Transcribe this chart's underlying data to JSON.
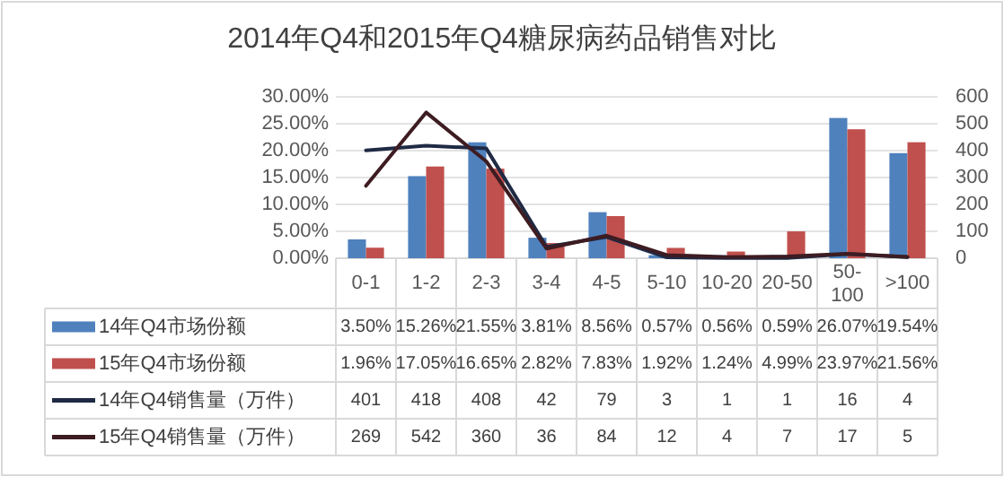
{
  "chart_data": {
    "type": "bar",
    "title": "2014年Q4和2015年Q4糖尿病药品销售对比",
    "categories": [
      "0-1",
      "1-2",
      "2-3",
      "3-4",
      "4-5",
      "5-10",
      "10-20",
      "20-50",
      "50-100",
      ">100"
    ],
    "ylim": [
      0,
      30
    ],
    "yticks": [
      {
        "value": 0,
        "label": "0.00%"
      },
      {
        "value": 5,
        "label": "5.00%"
      },
      {
        "value": 10,
        "label": "10.00%"
      },
      {
        "value": 15,
        "label": "15.00%"
      },
      {
        "value": 20,
        "label": "20.00%"
      },
      {
        "value": 25,
        "label": "25.00%"
      },
      {
        "value": 30,
        "label": "30.00%"
      }
    ],
    "y2lim": [
      0,
      600
    ],
    "y2ticks": [
      0,
      100,
      200,
      300,
      400,
      500,
      600
    ],
    "grid": "y",
    "legend": "bottom",
    "series": [
      {
        "name": "14年Q4市场份额",
        "color": "#4f81bd",
        "values": [
          3.5,
          15.26,
          21.55,
          3.81,
          8.56,
          0.57,
          0.56,
          0.59,
          26.07,
          19.54
        ],
        "value_labels": [
          "3.50%",
          "15.26%",
          "21.55%",
          "3.81%",
          "8.56%",
          "0.57%",
          "0.56%",
          "0.59%",
          "26.07%",
          "19.54%"
        ]
      },
      {
        "name": "15年Q4市场份额",
        "color": "#c0504d",
        "values": [
          1.96,
          17.05,
          16.65,
          2.82,
          7.83,
          1.92,
          1.24,
          4.99,
          23.97,
          21.56
        ],
        "value_labels": [
          "1.96%",
          "17.05%",
          "16.65%",
          "2.82%",
          "7.83%",
          "1.92%",
          "1.24%",
          "4.99%",
          "23.97%",
          "21.56%"
        ]
      },
      {
        "name": "14年Q4销售量（万件）",
        "type": "line",
        "axis": "y2",
        "color": "#1f2a44",
        "values": [
          401,
          418,
          408,
          42,
          79,
          3,
          1,
          1,
          16,
          4
        ],
        "value_labels": [
          "401",
          "418",
          "408",
          "42",
          "79",
          "3",
          "1",
          "1",
          "16",
          "4"
        ]
      },
      {
        "name": "15年Q4销售量（万件）",
        "type": "line",
        "axis": "y2",
        "color": "#3d1c22",
        "values": [
          269,
          542,
          360,
          36,
          84,
          12,
          4,
          7,
          17,
          5
        ],
        "value_labels": [
          "269",
          "542",
          "360",
          "36",
          "84",
          "12",
          "4",
          "7",
          "17",
          "5"
        ]
      }
    ]
  }
}
